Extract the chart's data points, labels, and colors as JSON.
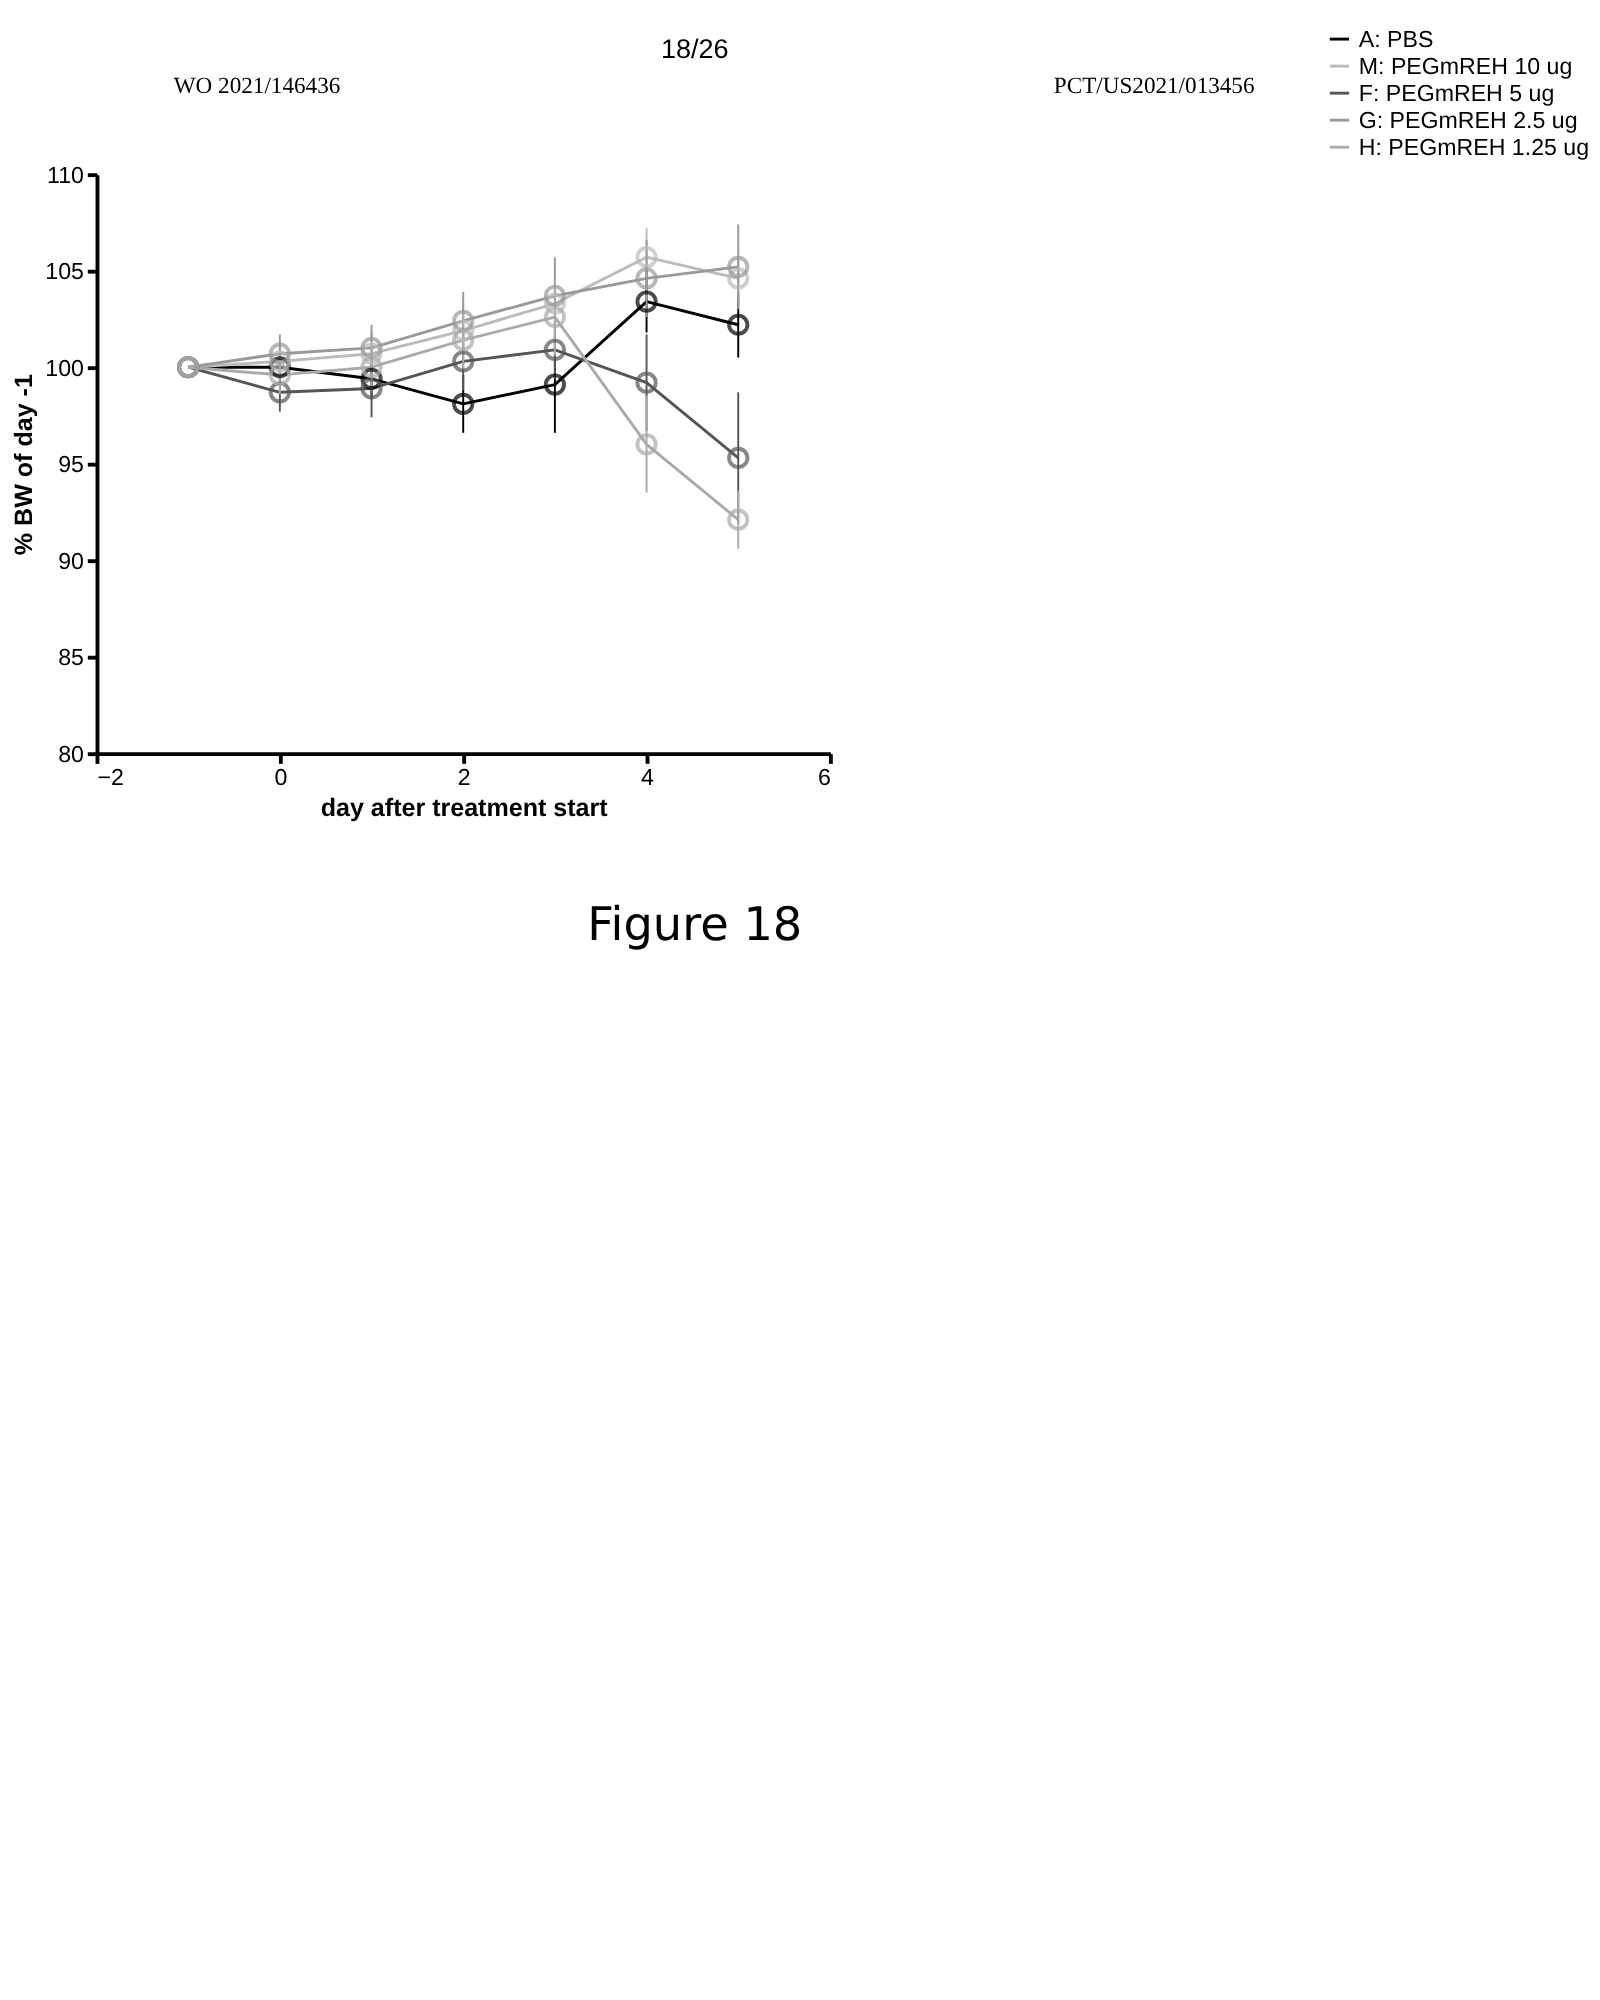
{
  "chart_data": {
    "type": "line",
    "xlabel": "day after treatment start",
    "ylabel": "% BW of day -1",
    "xlim": [
      -2,
      6
    ],
    "xticks": [
      -2,
      0,
      2,
      4,
      6
    ],
    "ylim": [
      80,
      110
    ],
    "yticks": [
      80,
      85,
      90,
      95,
      100,
      105,
      110
    ],
    "x": [
      -1,
      0,
      1,
      2,
      3,
      4,
      5
    ],
    "series": [
      {
        "name": "A: PBS",
        "color": "#000000",
        "values": [
          100,
          100,
          99.4,
          98.1,
          99.1,
          103.4,
          102.2
        ],
        "errors": [
          null,
          0.5,
          1.0,
          1.5,
          2.5,
          1.6,
          1.7
        ]
      },
      {
        "name": "M: PEGmREH 10 ug",
        "color": "#bbbbbb",
        "values": [
          100,
          100.3,
          100.7,
          101.9,
          103.3,
          105.7,
          104.6
        ],
        "errors": [
          null,
          1.0,
          1.2,
          1.5,
          2.0,
          1.5,
          1.2
        ]
      },
      {
        "name": "F: PEGmREH 5 ug",
        "color": "#555555",
        "values": [
          100,
          98.7,
          98.9,
          100.3,
          100.9,
          99.2,
          95.3
        ],
        "errors": [
          null,
          1.0,
          1.5,
          1.5,
          1.5,
          2.5,
          3.4
        ]
      },
      {
        "name": "G: PEGmREH 2.5 ug",
        "color": "#999999",
        "values": [
          100,
          100.7,
          101.0,
          102.4,
          103.7,
          104.6,
          105.2
        ],
        "errors": [
          null,
          1.0,
          1.2,
          1.5,
          2.0,
          2.0,
          2.2
        ]
      },
      {
        "name": "H: PEGmREH 1.25 ug",
        "color": "#aaaaaa",
        "values": [
          100,
          99.6,
          100.0,
          101.4,
          102.6,
          96.0,
          92.1
        ],
        "errors": [
          null,
          1.0,
          1.2,
          1.5,
          2.0,
          2.5,
          1.5
        ]
      }
    ],
    "marker": "circle",
    "line_style": "solid",
    "grid": false,
    "legend": "right",
    "annotations": [
      "WO 2021/146436",
      "18/26",
      "PCT/US2021/013456",
      "Figure 18"
    ]
  }
}
